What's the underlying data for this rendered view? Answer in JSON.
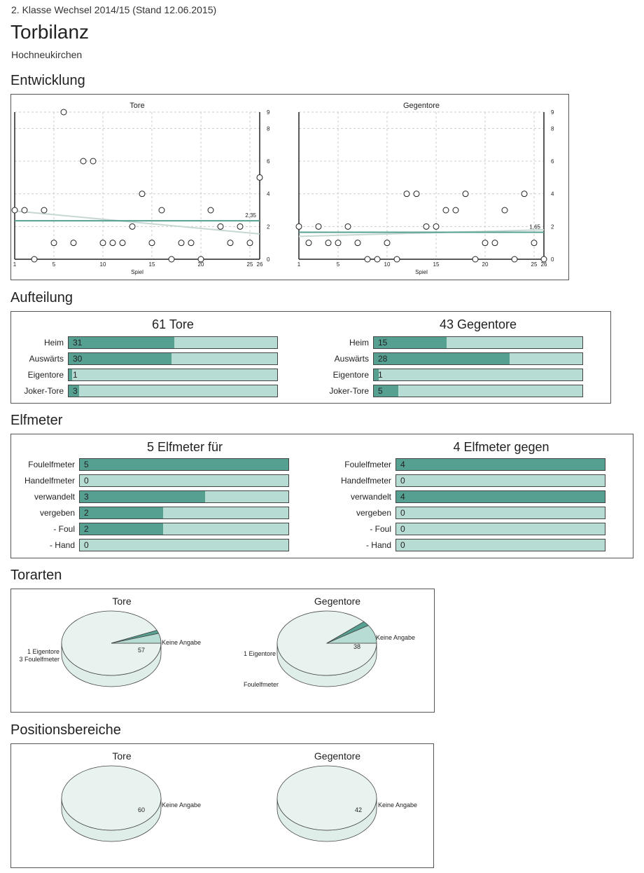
{
  "header": {
    "league": "2. Klasse Wechsel 2014/15 (Stand 12.06.2015)",
    "title": "Torbilanz",
    "team": "Hochneukirchen"
  },
  "sections": {
    "entwicklung": "Entwicklung",
    "aufteilung": "Aufteilung",
    "elfmeter": "Elfmeter",
    "torarten": "Torarten",
    "positionsbereiche": "Positionsbereiche"
  },
  "colors": {
    "accent": "#56a092",
    "light": "#b7dcd3",
    "trend": "#c7d7d4",
    "pie": "#e8f3f0"
  },
  "chart_data": [
    {
      "type": "scatter",
      "title": "Tore",
      "xlabel": "Spiel",
      "x_ticks": [
        "1",
        "5",
        "10",
        "15",
        "20",
        "25",
        "26"
      ],
      "y_ticks": [
        "0",
        "2",
        "4",
        "6",
        "8",
        "9"
      ],
      "xlim": [
        1,
        26
      ],
      "ylim": [
        0,
        9
      ],
      "x": [
        1,
        2,
        3,
        4,
        5,
        6,
        7,
        8,
        9,
        10,
        11,
        12,
        13,
        14,
        15,
        16,
        17,
        18,
        19,
        20,
        21,
        22,
        23,
        24,
        25,
        26
      ],
      "values": [
        3,
        3,
        0,
        3,
        1,
        9,
        1,
        6,
        6,
        1,
        1,
        1,
        2,
        4,
        1,
        3,
        0,
        1,
        1,
        0,
        3,
        2,
        1,
        2,
        1,
        5
      ],
      "average": 2.35,
      "average_label": "2,35",
      "trend": [
        2.95,
        1.55
      ]
    },
    {
      "type": "scatter",
      "title": "Gegentore",
      "xlabel": "Spiel",
      "x_ticks": [
        "1",
        "5",
        "10",
        "15",
        "20",
        "25",
        "26"
      ],
      "y_ticks": [
        "0",
        "2",
        "4",
        "6",
        "8",
        "9"
      ],
      "xlim": [
        1,
        26
      ],
      "ylim": [
        0,
        9
      ],
      "x": [
        1,
        2,
        3,
        4,
        5,
        6,
        7,
        8,
        9,
        10,
        11,
        12,
        13,
        14,
        15,
        16,
        17,
        18,
        19,
        20,
        21,
        22,
        23,
        24,
        25,
        26
      ],
      "values": [
        2,
        1,
        2,
        1,
        1,
        2,
        1,
        0,
        0,
        1,
        0,
        4,
        4,
        2,
        2,
        3,
        3,
        4,
        0,
        1,
        1,
        3,
        0,
        4,
        1,
        0
      ],
      "average": 1.65,
      "average_label": "1,65",
      "trend": [
        1.4,
        1.8
      ]
    },
    {
      "type": "bar",
      "title": "61 Tore",
      "max": 61,
      "categories": [
        "Heim",
        "Auswärts",
        "Eigentore",
        "Joker-Tore"
      ],
      "values": [
        31,
        30,
        1,
        3
      ]
    },
    {
      "type": "bar",
      "title": "43 Gegentore",
      "max": 43,
      "categories": [
        "Heim",
        "Auswärts",
        "Eigentore",
        "Joker-Tore"
      ],
      "values": [
        15,
        28,
        1,
        5
      ]
    },
    {
      "type": "bar",
      "title": "5 Elfmeter für",
      "max": 5,
      "categories": [
        "Foulelfmeter",
        "Handelfmeter",
        "verwandelt",
        "vergeben",
        "- Foul",
        "- Hand"
      ],
      "values": [
        5,
        0,
        3,
        2,
        2,
        0
      ]
    },
    {
      "type": "bar",
      "title": "4 Elfmeter gegen",
      "max": 4,
      "categories": [
        "Foulelfmeter",
        "Handelfmeter",
        "verwandelt",
        "vergeben",
        "- Foul",
        "- Hand"
      ],
      "values": [
        4,
        0,
        4,
        0,
        0,
        0
      ]
    },
    {
      "type": "pie",
      "title": "Tore",
      "slices": [
        {
          "label": "Keine Angabe",
          "value": 57,
          "value_label": "57"
        },
        {
          "label": "1 Eigentore",
          "value": 1,
          "value_label": ""
        },
        {
          "label": "3 Foulelfmeter",
          "value": 3,
          "value_label": ""
        }
      ]
    },
    {
      "type": "pie",
      "title": "Gegentore",
      "slices": [
        {
          "label": "Keine Angabe",
          "value": 38,
          "value_label": "38"
        },
        {
          "label": "1 Eigentore",
          "value": 1,
          "value_label": ""
        },
        {
          "label": "Foulelfmeter",
          "value": 4,
          "value_label": "4"
        }
      ]
    },
    {
      "type": "pie",
      "title": "Tore",
      "slices": [
        {
          "label": "Keine Angabe",
          "value": 60,
          "value_label": "60"
        }
      ]
    },
    {
      "type": "pie",
      "title": "Gegentore",
      "slices": [
        {
          "label": "Keine Angabe",
          "value": 42,
          "value_label": "42"
        }
      ]
    }
  ]
}
